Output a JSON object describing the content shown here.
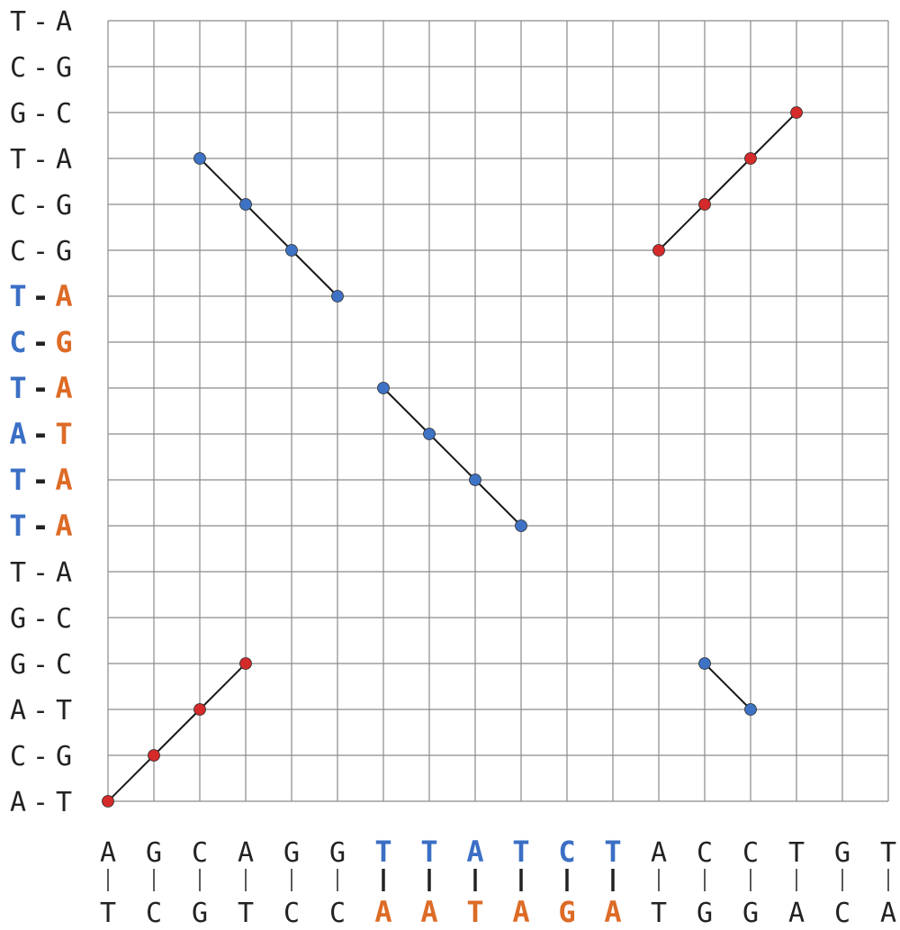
{
  "colors": {
    "blue": "#3a6fc4",
    "orange": "#dd6b26",
    "red_dot": "#d42a2a",
    "blue_dot": "#3e72c4",
    "grid": "#8a8a8a",
    "line": "#1a1a1a",
    "text": "#222222"
  },
  "horizontal": {
    "top": [
      "A",
      "G",
      "C",
      "A",
      "G",
      "G",
      "T",
      "T",
      "A",
      "T",
      "C",
      "T",
      "A",
      "C",
      "C",
      "T",
      "G",
      "T"
    ],
    "bottom": [
      "T",
      "C",
      "G",
      "T",
      "C",
      "C",
      "A",
      "A",
      "T",
      "A",
      "G",
      "A",
      "T",
      "G",
      "G",
      "A",
      "C",
      "A"
    ],
    "highlight": [
      6,
      7,
      8,
      9,
      10,
      11
    ]
  },
  "vertical": {
    "left": [
      "A",
      "C",
      "A",
      "G",
      "G",
      "T",
      "T",
      "T",
      "A",
      "T",
      "C",
      "T",
      "C",
      "C",
      "T",
      "G",
      "C",
      "T"
    ],
    "right": [
      "T",
      "G",
      "T",
      "C",
      "C",
      "A",
      "A",
      "A",
      "T",
      "A",
      "G",
      "A",
      "G",
      "G",
      "A",
      "C",
      "G",
      "A"
    ],
    "highlight": [
      6,
      7,
      8,
      9,
      10,
      11
    ]
  },
  "matches": [
    {
      "color": "red",
      "points": [
        [
          0,
          0
        ],
        [
          1,
          1
        ],
        [
          2,
          2
        ],
        [
          3,
          3
        ]
      ]
    },
    {
      "color": "blue",
      "points": [
        [
          2,
          14
        ],
        [
          3,
          13
        ],
        [
          4,
          12
        ],
        [
          5,
          11
        ]
      ]
    },
    {
      "color": "blue",
      "points": [
        [
          6,
          9
        ],
        [
          7,
          8
        ],
        [
          8,
          7
        ],
        [
          9,
          6
        ]
      ]
    },
    {
      "color": "red",
      "points": [
        [
          12,
          12
        ],
        [
          13,
          13
        ],
        [
          14,
          14
        ],
        [
          15,
          15
        ]
      ]
    },
    {
      "color": "blue",
      "points": [
        [
          13,
          3
        ],
        [
          14,
          2
        ]
      ]
    }
  ]
}
